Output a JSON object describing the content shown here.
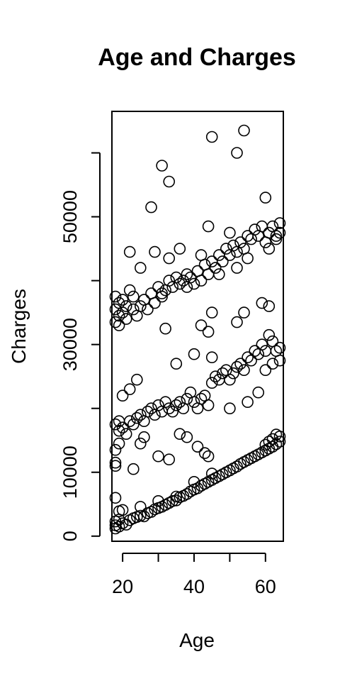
{
  "chart_data": {
    "type": "scatter",
    "title": "Age and Charges",
    "xlabel": "Age",
    "ylabel": "Charges",
    "xlim": [
      17,
      65
    ],
    "ylim": [
      -800,
      66500
    ],
    "xticks": [
      20,
      40,
      60
    ],
    "yticks": [
      0,
      10000,
      30000,
      50000
    ],
    "ytick_marks": [
      0,
      10000,
      20000,
      30000,
      40000,
      50000,
      60000
    ],
    "marker": "open-circle",
    "point_color": "#000000",
    "series": [
      {
        "name": "Charges",
        "points": [
          [
            18,
            1200
          ],
          [
            18,
            1700
          ],
          [
            18,
            2300
          ],
          [
            19,
            1500
          ],
          [
            19,
            2600
          ],
          [
            20,
            2000
          ],
          [
            21,
            1800
          ],
          [
            22,
            2500
          ],
          [
            23,
            2800
          ],
          [
            24,
            3000
          ],
          [
            25,
            3200
          ],
          [
            26,
            3100
          ],
          [
            27,
            3600
          ],
          [
            28,
            3800
          ],
          [
            29,
            4200
          ],
          [
            30,
            4400
          ],
          [
            31,
            4600
          ],
          [
            32,
            4900
          ],
          [
            33,
            5200
          ],
          [
            34,
            5500
          ],
          [
            35,
            5600
          ],
          [
            36,
            6100
          ],
          [
            37,
            6300
          ],
          [
            38,
            6600
          ],
          [
            39,
            7000
          ],
          [
            40,
            7300
          ],
          [
            41,
            7500
          ],
          [
            42,
            7900
          ],
          [
            43,
            8200
          ],
          [
            44,
            8500
          ],
          [
            45,
            8800
          ],
          [
            46,
            9100
          ],
          [
            47,
            9400
          ],
          [
            48,
            9700
          ],
          [
            49,
            10000
          ],
          [
            50,
            10300
          ],
          [
            51,
            10600
          ],
          [
            52,
            10900
          ],
          [
            53,
            11300
          ],
          [
            54,
            11600
          ],
          [
            55,
            11900
          ],
          [
            56,
            12200
          ],
          [
            57,
            12500
          ],
          [
            58,
            12800
          ],
          [
            59,
            13100
          ],
          [
            60,
            13400
          ],
          [
            61,
            13700
          ],
          [
            62,
            14000
          ],
          [
            63,
            14400
          ],
          [
            64,
            14800
          ],
          [
            64,
            15600
          ],
          [
            63,
            15900
          ],
          [
            62,
            15200
          ],
          [
            61,
            14800
          ],
          [
            60,
            14300
          ],
          [
            18,
            6000
          ],
          [
            19,
            3900
          ],
          [
            20,
            4100
          ],
          [
            25,
            4600
          ],
          [
            30,
            5500
          ],
          [
            35,
            6200
          ],
          [
            40,
            8500
          ],
          [
            45,
            9800
          ],
          [
            18,
            11000
          ],
          [
            18,
            11500
          ],
          [
            18,
            13500
          ],
          [
            19,
            14500
          ],
          [
            19,
            16500
          ],
          [
            18,
            17500
          ],
          [
            19,
            18000
          ],
          [
            20,
            17000
          ],
          [
            21,
            16000
          ],
          [
            22,
            18000
          ],
          [
            23,
            17500
          ],
          [
            24,
            18500
          ],
          [
            25,
            19000
          ],
          [
            26,
            18000
          ],
          [
            27,
            19500
          ],
          [
            28,
            20000
          ],
          [
            29,
            19000
          ],
          [
            30,
            20500
          ],
          [
            31,
            19500
          ],
          [
            32,
            21000
          ],
          [
            33,
            20000
          ],
          [
            34,
            19500
          ],
          [
            35,
            20500
          ],
          [
            36,
            21000
          ],
          [
            37,
            20000
          ],
          [
            38,
            21500
          ],
          [
            39,
            22500
          ],
          [
            40,
            21000
          ],
          [
            41,
            20000
          ],
          [
            42,
            21500
          ],
          [
            43,
            22000
          ],
          [
            44,
            20500
          ],
          [
            45,
            24000
          ],
          [
            46,
            25000
          ],
          [
            47,
            24500
          ],
          [
            48,
            25500
          ],
          [
            49,
            26000
          ],
          [
            50,
            24500
          ],
          [
            51,
            25500
          ],
          [
            52,
            26500
          ],
          [
            53,
            27000
          ],
          [
            54,
            26000
          ],
          [
            55,
            28000
          ],
          [
            56,
            27500
          ],
          [
            57,
            29000
          ],
          [
            58,
            28500
          ],
          [
            59,
            30000
          ],
          [
            60,
            29000
          ],
          [
            61,
            31500
          ],
          [
            62,
            30500
          ],
          [
            63,
            29000
          ],
          [
            64,
            29500
          ],
          [
            20,
            22000
          ],
          [
            22,
            23000
          ],
          [
            24,
            24500
          ],
          [
            25,
            14500
          ],
          [
            26,
            15500
          ],
          [
            23,
            10500
          ],
          [
            30,
            12500
          ],
          [
            33,
            12000
          ],
          [
            36,
            16000
          ],
          [
            38,
            15500
          ],
          [
            41,
            14000
          ],
          [
            43,
            13000
          ],
          [
            44,
            12500
          ],
          [
            50,
            20000
          ],
          [
            55,
            21000
          ],
          [
            58,
            22500
          ],
          [
            60,
            26000
          ],
          [
            62,
            27000
          ],
          [
            64,
            27500
          ],
          [
            45,
            28000
          ],
          [
            40,
            28500
          ],
          [
            35,
            27000
          ],
          [
            18,
            33500
          ],
          [
            18,
            35500
          ],
          [
            18,
            37500
          ],
          [
            19,
            33000
          ],
          [
            19,
            34500
          ],
          [
            19,
            36500
          ],
          [
            20,
            35000
          ],
          [
            20,
            37000
          ],
          [
            21,
            34000
          ],
          [
            21,
            36000
          ],
          [
            22,
            38500
          ],
          [
            23,
            35500
          ],
          [
            23,
            37500
          ],
          [
            24,
            34500
          ],
          [
            25,
            36000
          ],
          [
            26,
            37000
          ],
          [
            27,
            35500
          ],
          [
            28,
            38000
          ],
          [
            29,
            36500
          ],
          [
            30,
            39000
          ],
          [
            31,
            37500
          ],
          [
            32,
            38500
          ],
          [
            33,
            40000
          ],
          [
            34,
            39000
          ],
          [
            35,
            40500
          ],
          [
            36,
            39500
          ],
          [
            37,
            40000
          ],
          [
            38,
            41000
          ],
          [
            39,
            40500
          ],
          [
            40,
            39500
          ],
          [
            41,
            41500
          ],
          [
            42,
            40000
          ],
          [
            43,
            42500
          ],
          [
            44,
            41000
          ],
          [
            45,
            43000
          ],
          [
            46,
            42000
          ],
          [
            47,
            44000
          ],
          [
            48,
            43000
          ],
          [
            49,
            45000
          ],
          [
            50,
            44000
          ],
          [
            51,
            45500
          ],
          [
            52,
            44500
          ],
          [
            53,
            46000
          ],
          [
            54,
            45000
          ],
          [
            55,
            47000
          ],
          [
            56,
            46500
          ],
          [
            57,
            48000
          ],
          [
            58,
            47000
          ],
          [
            59,
            48500
          ],
          [
            60,
            46000
          ],
          [
            61,
            47500
          ],
          [
            62,
            48500
          ],
          [
            63,
            47000
          ],
          [
            64,
            49000
          ],
          [
            64,
            47500
          ],
          [
            63,
            46500
          ],
          [
            61,
            45000
          ],
          [
            60,
            53000
          ],
          [
            22,
            44500
          ],
          [
            25,
            42000
          ],
          [
            29,
            44500
          ],
          [
            33,
            43500
          ],
          [
            36,
            45000
          ],
          [
            42,
            44000
          ],
          [
            44,
            48500
          ],
          [
            50,
            47500
          ],
          [
            55,
            43500
          ],
          [
            52,
            42000
          ],
          [
            47,
            41000
          ],
          [
            38,
            39000
          ],
          [
            31,
            38000
          ],
          [
            28,
            51500
          ],
          [
            31,
            58000
          ],
          [
            33,
            55500
          ],
          [
            45,
            62500
          ],
          [
            52,
            60000
          ],
          [
            54,
            63500
          ],
          [
            32,
            32500
          ],
          [
            42,
            33000
          ],
          [
            44,
            32000
          ],
          [
            45,
            35000
          ],
          [
            52,
            33500
          ],
          [
            54,
            35000
          ],
          [
            59,
            36500
          ],
          [
            61,
            36000
          ]
        ]
      }
    ]
  }
}
